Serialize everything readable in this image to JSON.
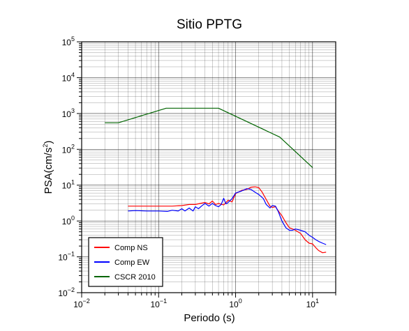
{
  "chart_data": {
    "type": "line",
    "title": "Sitio PPTG",
    "xlabel": "Periodo (s)",
    "ylabel_main": "PSA(cm/s",
    "ylabel_sup": "2",
    "ylabel_close": ")",
    "xscale": "log",
    "yscale": "log",
    "xlim": [
      0.01,
      20
    ],
    "ylim": [
      0.01,
      100000
    ],
    "grid": true,
    "legend_position": "bottom-left",
    "x_ticks": [
      {
        "base": "10",
        "exp": "−2",
        "value": 0.01
      },
      {
        "base": "10",
        "exp": "−1",
        "value": 0.1
      },
      {
        "base": "10",
        "exp": "0",
        "value": 1
      },
      {
        "base": "10",
        "exp": "1",
        "value": 10
      }
    ],
    "y_ticks": [
      {
        "base": "10",
        "exp": "−2",
        "value": 0.01
      },
      {
        "base": "10",
        "exp": "−1",
        "value": 0.1
      },
      {
        "base": "10",
        "exp": "0",
        "value": 1
      },
      {
        "base": "10",
        "exp": "1",
        "value": 10
      },
      {
        "base": "10",
        "exp": "2",
        "value": 100
      },
      {
        "base": "10",
        "exp": "3",
        "value": 1000
      },
      {
        "base": "10",
        "exp": "4",
        "value": 10000
      },
      {
        "base": "10",
        "exp": "5",
        "value": 100000
      }
    ],
    "series": [
      {
        "name": "Comp NS",
        "color": "#ff0000",
        "points": [
          [
            0.04,
            2.6
          ],
          [
            0.05,
            2.6
          ],
          [
            0.07,
            2.6
          ],
          [
            0.1,
            2.6
          ],
          [
            0.15,
            2.6
          ],
          [
            0.2,
            2.7
          ],
          [
            0.25,
            2.9
          ],
          [
            0.3,
            2.9
          ],
          [
            0.35,
            3.1
          ],
          [
            0.4,
            3.3
          ],
          [
            0.45,
            3.0
          ],
          [
            0.5,
            3.6
          ],
          [
            0.55,
            2.9
          ],
          [
            0.6,
            3.1
          ],
          [
            0.7,
            2.8
          ],
          [
            0.8,
            3.8
          ],
          [
            0.9,
            3.4
          ],
          [
            1.0,
            5.8
          ],
          [
            1.2,
            7.2
          ],
          [
            1.4,
            7.6
          ],
          [
            1.6,
            8.8
          ],
          [
            1.8,
            9.0
          ],
          [
            2.0,
            8.5
          ],
          [
            2.2,
            6.5
          ],
          [
            2.5,
            4.0
          ],
          [
            2.8,
            2.6
          ],
          [
            3.0,
            2.4
          ],
          [
            3.3,
            2.5
          ],
          [
            3.6,
            1.9
          ],
          [
            4.0,
            1.4
          ],
          [
            4.5,
            0.9
          ],
          [
            5.0,
            0.65
          ],
          [
            5.5,
            0.6
          ],
          [
            6.0,
            0.55
          ],
          [
            7.0,
            0.45
          ],
          [
            8.0,
            0.3
          ],
          [
            9.0,
            0.24
          ],
          [
            10.0,
            0.23
          ],
          [
            11.0,
            0.18
          ],
          [
            12.0,
            0.15
          ],
          [
            13.5,
            0.13
          ],
          [
            15.0,
            0.135
          ]
        ]
      },
      {
        "name": "Comp EW",
        "color": "#0000ff",
        "points": [
          [
            0.04,
            1.9
          ],
          [
            0.05,
            1.95
          ],
          [
            0.07,
            1.9
          ],
          [
            0.1,
            1.9
          ],
          [
            0.13,
            1.85
          ],
          [
            0.15,
            2.0
          ],
          [
            0.18,
            1.9
          ],
          [
            0.2,
            2.2
          ],
          [
            0.22,
            1.9
          ],
          [
            0.25,
            2.3
          ],
          [
            0.28,
            1.9
          ],
          [
            0.3,
            2.5
          ],
          [
            0.33,
            2.2
          ],
          [
            0.36,
            2.6
          ],
          [
            0.4,
            3.1
          ],
          [
            0.45,
            2.6
          ],
          [
            0.5,
            3.1
          ],
          [
            0.55,
            2.7
          ],
          [
            0.6,
            2.5
          ],
          [
            0.65,
            2.9
          ],
          [
            0.7,
            4.3
          ],
          [
            0.75,
            3.0
          ],
          [
            0.8,
            3.3
          ],
          [
            0.9,
            4.2
          ],
          [
            1.0,
            6.0
          ],
          [
            1.2,
            6.9
          ],
          [
            1.4,
            8.0
          ],
          [
            1.6,
            7.5
          ],
          [
            1.8,
            6.3
          ],
          [
            2.0,
            5.5
          ],
          [
            2.3,
            4.2
          ],
          [
            2.5,
            2.9
          ],
          [
            2.8,
            2.3
          ],
          [
            3.0,
            2.7
          ],
          [
            3.3,
            2.6
          ],
          [
            3.6,
            1.8
          ],
          [
            4.0,
            1.0
          ],
          [
            4.5,
            0.65
          ],
          [
            5.0,
            0.55
          ],
          [
            5.5,
            0.55
          ],
          [
            6.0,
            0.6
          ],
          [
            7.0,
            0.55
          ],
          [
            8.0,
            0.5
          ],
          [
            9.0,
            0.4
          ],
          [
            10.0,
            0.35
          ],
          [
            11.0,
            0.3
          ],
          [
            12.0,
            0.27
          ],
          [
            13.5,
            0.24
          ],
          [
            15.0,
            0.22
          ]
        ]
      },
      {
        "name": "CSCR 2010",
        "color": "#006400",
        "points": [
          [
            0.02,
            550
          ],
          [
            0.03,
            550
          ],
          [
            0.125,
            1400
          ],
          [
            0.6,
            1400
          ],
          [
            3.75,
            220
          ],
          [
            10.0,
            31
          ]
        ]
      }
    ]
  }
}
